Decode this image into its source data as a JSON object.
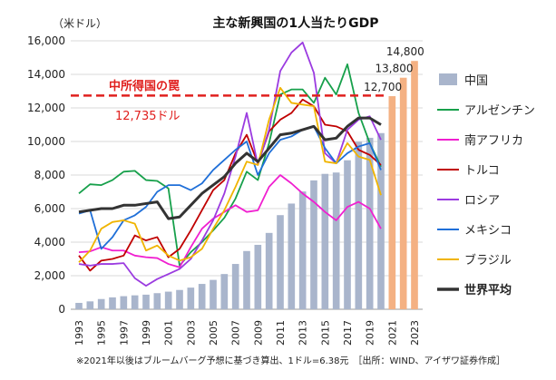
{
  "chart_data": {
    "type": "line",
    "title": "主な新興国の1人当たりGDP",
    "ylabel": "（米ドル）",
    "xlabel": "",
    "ylim": [
      0,
      16000
    ],
    "yticks": [
      0,
      2000,
      4000,
      6000,
      8000,
      10000,
      12000,
      14000,
      16000
    ],
    "ytick_labels": [
      "0",
      "2,000",
      "4,000",
      "6,000",
      "8,000",
      "10,000",
      "12,000",
      "14,000",
      "16,000"
    ],
    "x": [
      1993,
      1994,
      1995,
      1996,
      1997,
      1998,
      1999,
      2000,
      2001,
      2002,
      2003,
      2004,
      2005,
      2006,
      2007,
      2008,
      2009,
      2010,
      2011,
      2012,
      2013,
      2014,
      2015,
      2016,
      2017,
      2018,
      2019,
      2020,
      2021,
      2022,
      2023
    ],
    "xtick_labels": [
      "1993",
      "1995",
      "1997",
      "1999",
      "2001",
      "2003",
      "2005",
      "2007",
      "2009",
      "2011",
      "2013",
      "2015",
      "2017",
      "2019",
      "2021",
      "2023"
    ],
    "grid": "horizontal",
    "legend_position": "right",
    "series": [
      {
        "name": "中国",
        "kind": "bar",
        "color": "#a9b5cc",
        "values": [
          380,
          470,
          610,
          710,
          780,
          830,
          870,
          960,
          1050,
          1150,
          1290,
          1510,
          1750,
          2100,
          2700,
          3470,
          3840,
          4550,
          5610,
          6300,
          7020,
          7680,
          8070,
          8150,
          8880,
          9980,
          10220,
          10500,
          null,
          null,
          null
        ]
      },
      {
        "name": "中国（予想）",
        "kind": "bar-forecast",
        "color": "#f4b183",
        "x": [
          2021,
          2022,
          2023
        ],
        "values": [
          12700,
          13800,
          14800
        ]
      },
      {
        "name": "アルゼンチン",
        "kind": "line",
        "color": "#17a04b",
        "values": [
          6900,
          7450,
          7400,
          7700,
          8200,
          8250,
          7700,
          7650,
          7200,
          2600,
          3400,
          4000,
          4700,
          5450,
          6600,
          8200,
          7700,
          9900,
          12800,
          13100,
          13100,
          12300,
          13800,
          12800,
          14600,
          11700,
          9900,
          8500,
          null,
          null,
          null
        ]
      },
      {
        "name": "南アフリカ",
        "kind": "line",
        "color": "#f01fd0",
        "values": [
          3400,
          3450,
          3700,
          3500,
          3500,
          3200,
          3100,
          3050,
          2700,
          2500,
          3700,
          4800,
          5400,
          5800,
          6200,
          5800,
          5900,
          7300,
          8000,
          7500,
          6900,
          6400,
          5800,
          5300,
          6100,
          6400,
          6000,
          4800,
          null,
          null,
          null
        ]
      },
      {
        "name": "トルコ",
        "kind": "line",
        "color": "#c00000",
        "values": [
          3200,
          2300,
          2900,
          3000,
          3200,
          4400,
          4100,
          4300,
          3100,
          3600,
          4700,
          5900,
          7100,
          7700,
          9300,
          10400,
          8700,
          10600,
          11300,
          11700,
          12500,
          12100,
          11000,
          10900,
          10600,
          9500,
          9200,
          8600,
          null,
          null,
          null
        ]
      },
      {
        "name": "ロシア",
        "kind": "line",
        "color": "#9b3be0",
        "values": [
          2700,
          2600,
          2700,
          2700,
          2750,
          1850,
          1400,
          1800,
          2100,
          2400,
          3000,
          4100,
          5300,
          6900,
          9100,
          11700,
          8600,
          10700,
          14200,
          15300,
          15900,
          14100,
          9300,
          8700,
          10700,
          11300,
          11500,
          10100,
          null,
          null,
          null
        ]
      },
      {
        "name": "メキシコ",
        "kind": "line",
        "color": "#1f6fd8",
        "values": [
          5700,
          5900,
          3600,
          4300,
          5300,
          5600,
          6100,
          7000,
          7400,
          7400,
          7100,
          7500,
          8300,
          8900,
          9500,
          10000,
          8000,
          9300,
          10100,
          10300,
          10700,
          10900,
          9600,
          8700,
          9300,
          9700,
          9900,
          8300,
          null,
          null,
          null
        ]
      },
      {
        "name": "ブラジル",
        "kind": "line",
        "color": "#f0b400",
        "values": [
          2800,
          3500,
          4800,
          5200,
          5300,
          5100,
          3500,
          3800,
          3200,
          2900,
          3100,
          3600,
          4800,
          5900,
          7300,
          8800,
          8600,
          11300,
          13200,
          12300,
          12200,
          12100,
          8800,
          8700,
          9900,
          9100,
          8900,
          6800,
          null,
          null,
          null
        ]
      },
      {
        "name": "世界平均",
        "kind": "line",
        "color": "#333333",
        "bold": true,
        "values": [
          5800,
          5900,
          6000,
          6000,
          6200,
          6200,
          6300,
          6400,
          5400,
          5500,
          6200,
          6900,
          7400,
          7900,
          8700,
          9300,
          8800,
          9600,
          10400,
          10500,
          10700,
          10900,
          10100,
          10200,
          10900,
          11400,
          11400,
          11000,
          null,
          null,
          null
        ]
      }
    ],
    "reference_line": {
      "label": "中所得国の罠",
      "value": 12735,
      "value_label": "12,735ドル",
      "color": "#e0201e"
    },
    "forecast_labels": [
      "12,700",
      "13,800",
      "14,800"
    ],
    "footnote": "※2021年以後はブルームバーグ予想に基づき算出、1ドル=6.38元　［出所：WIND、アイザワ証券作成］"
  }
}
